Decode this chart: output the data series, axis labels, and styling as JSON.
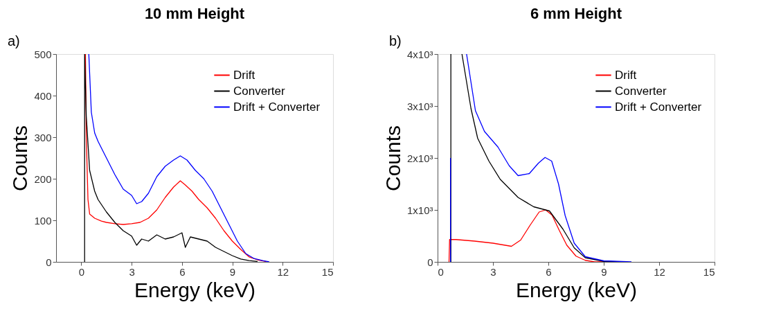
{
  "chart_data": [
    {
      "type": "line",
      "title": "10 mm Height",
      "xlabel": "Energy (keV)",
      "ylabel": "Counts",
      "annotations": [
        "a)"
      ],
      "xlim": [
        -1.5,
        15
      ],
      "xticks": [
        0,
        3,
        6,
        9,
        12,
        15
      ],
      "ylim": [
        0,
        500
      ],
      "yticks": [
        0,
        100,
        200,
        300,
        400,
        500
      ],
      "grid": false,
      "legend": "top right",
      "series": [
        {
          "name": "Drift",
          "color": "#ff0000",
          "x": [
            0.25,
            0.3,
            0.4,
            0.5,
            0.8,
            1.2,
            1.5,
            2,
            2.5,
            3,
            3.5,
            4,
            4.5,
            5,
            5.5,
            5.9,
            6.2,
            6.6,
            7,
            7.5,
            8,
            8.5,
            9,
            9.5,
            10,
            10.5,
            11
          ],
          "values": [
            500,
            300,
            150,
            115,
            105,
            98,
            95,
            92,
            90,
            92,
            95,
            105,
            125,
            155,
            180,
            195,
            185,
            170,
            150,
            130,
            105,
            75,
            50,
            30,
            12,
            5,
            1
          ]
        },
        {
          "name": "Converter",
          "color": "#000000",
          "x": [
            0.2,
            0.2,
            0.3,
            0.5,
            0.8,
            1,
            1.5,
            2,
            2.5,
            3,
            3.3,
            3.6,
            4,
            4.5,
            5,
            5.5,
            6,
            6.2,
            6.5,
            7,
            7.5,
            8,
            8.5,
            9,
            9.5,
            10,
            10.5
          ],
          "values": [
            0,
            500,
            350,
            220,
            170,
            150,
            120,
            95,
            75,
            62,
            40,
            55,
            50,
            65,
            55,
            60,
            70,
            35,
            60,
            55,
            50,
            35,
            25,
            15,
            7,
            3,
            1
          ]
        },
        {
          "name": "Drift + Converter",
          "color": "#0000ff",
          "x": [
            0.45,
            0.6,
            0.8,
            1,
            1.5,
            2,
            2.5,
            3,
            3.3,
            3.6,
            4,
            4.5,
            5,
            5.5,
            5.9,
            6.3,
            6.8,
            7.3,
            7.8,
            8.3,
            8.8,
            9.3,
            9.8,
            10.3,
            10.8,
            11.2
          ],
          "values": [
            500,
            360,
            310,
            290,
            250,
            210,
            175,
            160,
            140,
            145,
            165,
            205,
            230,
            245,
            255,
            245,
            220,
            200,
            170,
            130,
            90,
            50,
            20,
            8,
            3,
            0
          ]
        }
      ]
    },
    {
      "type": "line",
      "title": "6 mm Height",
      "xlabel": "Energy (keV)",
      "ylabel": "Counts",
      "annotations": [
        "b)"
      ],
      "xlim": [
        0,
        15
      ],
      "xticks": [
        0,
        3,
        6,
        9,
        12,
        15
      ],
      "ylim": [
        0,
        4000
      ],
      "yticks": [
        0,
        {
          "value": 1000,
          "label": "1x10³"
        },
        {
          "value": 2000,
          "label": "2x10³"
        },
        {
          "value": 3000,
          "label": "3x10³"
        },
        {
          "value": 4000,
          "label": "4x10³"
        }
      ],
      "grid": false,
      "legend": "top right",
      "series": [
        {
          "name": "Drift",
          "color": "#ff0000",
          "x": [
            0.62,
            0.65,
            1,
            2,
            3,
            4,
            4.5,
            5,
            5.5,
            5.85,
            6.2,
            6.6,
            7,
            7.5,
            8,
            8.5,
            9
          ],
          "values": [
            0,
            430,
            430,
            400,
            360,
            300,
            420,
            700,
            960,
            1000,
            900,
            600,
            320,
            110,
            30,
            0,
            0
          ]
        },
        {
          "name": "Converter",
          "color": "#000000",
          "x": [
            0.72,
            0.72,
            1.0,
            1.32,
            1.81,
            2.17,
            2.78,
            3.39,
            4.36,
            5.21,
            6.06,
            6.79,
            7.4,
            8,
            9,
            10
          ],
          "values": [
            0,
            4000,
            null,
            4000,
            2950,
            2380,
            1940,
            1590,
            1240,
            1060,
            980,
            630,
            270,
            80,
            10,
            0
          ]
        },
        {
          "name": "Drift + Converter",
          "color": "#0000ff",
          "x": [
            0.7,
            0.7,
            1.0,
            1.57,
            2.05,
            2.54,
            3.27,
            3.88,
            4.36,
            4.97,
            5.46,
            5.82,
            6.18,
            6.55,
            6.91,
            7.4,
            8,
            9,
            10.5
          ],
          "values": [
            0,
            2000,
            null,
            4000,
            2910,
            2510,
            2210,
            1850,
            1660,
            1700,
            1900,
            2010,
            1940,
            1500,
            890,
            360,
            100,
            20,
            0
          ]
        }
      ]
    }
  ]
}
